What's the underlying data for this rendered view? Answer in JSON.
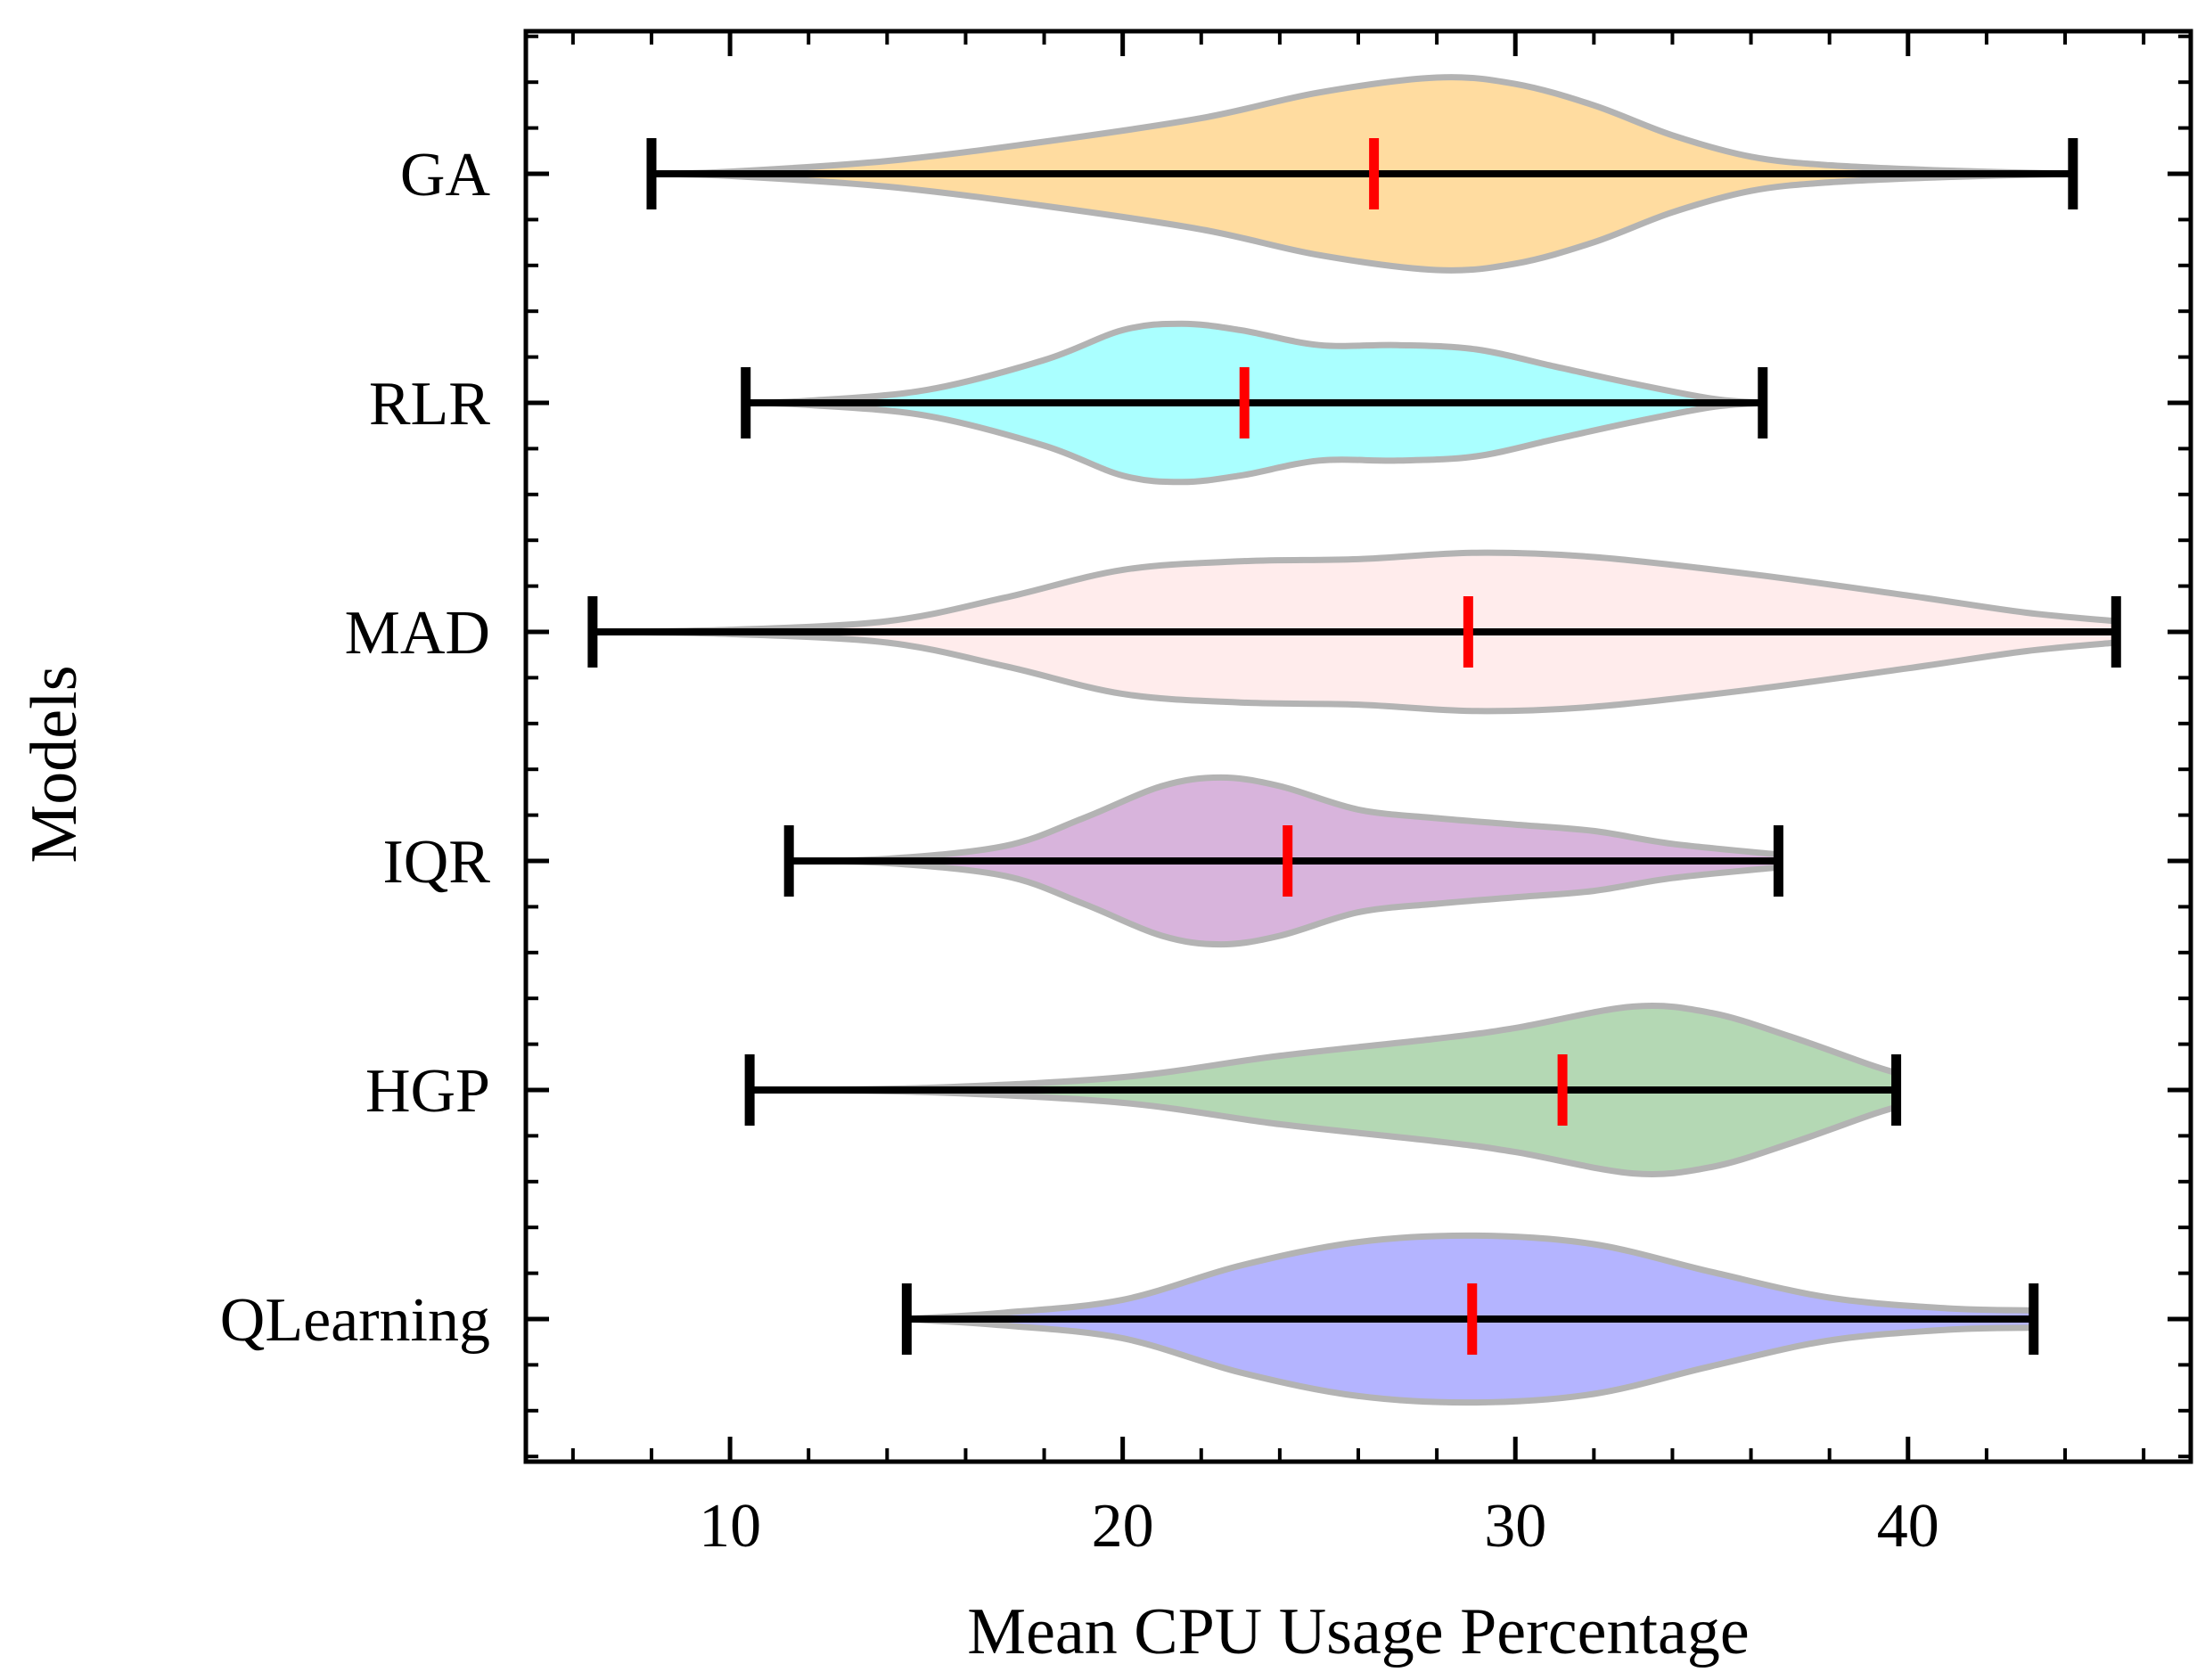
{
  "chart_data": {
    "type": "violin",
    "orientation": "horizontal",
    "xlabel": "Mean CPU Usage Percentage",
    "ylabel": "Models",
    "xlim": [
      4.8,
      47.2
    ],
    "xticks": [
      10,
      20,
      30,
      40
    ],
    "x_minor_step": 2,
    "grid": false,
    "colors": {
      "outline": "#b3b3b3",
      "whisker": "#000000",
      "median": "#ff0000"
    },
    "series": [
      {
        "name": "GA",
        "color": "#ffdca0",
        "min": 8.0,
        "max": 44.2,
        "median": 26.4,
        "profile": [
          [
            8.0,
            0.0
          ],
          [
            10,
            0.01
          ],
          [
            14,
            0.06
          ],
          [
            18,
            0.15
          ],
          [
            22,
            0.26
          ],
          [
            25,
            0.38
          ],
          [
            28,
            0.45
          ],
          [
            30,
            0.42
          ],
          [
            32,
            0.32
          ],
          [
            34,
            0.18
          ],
          [
            36,
            0.08
          ],
          [
            38,
            0.04
          ],
          [
            41,
            0.015
          ],
          [
            44.2,
            0.0
          ]
        ]
      },
      {
        "name": "RLR",
        "color": "#aaffff",
        "min": 10.4,
        "max": 36.3,
        "median": 23.1,
        "profile": [
          [
            10.4,
            0.0
          ],
          [
            12,
            0.01
          ],
          [
            15,
            0.06
          ],
          [
            18,
            0.2
          ],
          [
            20,
            0.34
          ],
          [
            21.5,
            0.37
          ],
          [
            23,
            0.34
          ],
          [
            25,
            0.27
          ],
          [
            27,
            0.27
          ],
          [
            29,
            0.25
          ],
          [
            31,
            0.17
          ],
          [
            33,
            0.09
          ],
          [
            35,
            0.02
          ],
          [
            36.3,
            0.0
          ]
        ]
      },
      {
        "name": "MAD",
        "color": "#ffecec",
        "min": 6.5,
        "max": 45.3,
        "median": 28.8,
        "profile": [
          [
            6.5,
            0.0
          ],
          [
            10,
            0.01
          ],
          [
            14,
            0.05
          ],
          [
            17,
            0.16
          ],
          [
            20,
            0.29
          ],
          [
            23,
            0.33
          ],
          [
            26,
            0.34
          ],
          [
            29,
            0.37
          ],
          [
            32,
            0.35
          ],
          [
            36,
            0.27
          ],
          [
            40,
            0.17
          ],
          [
            43,
            0.09
          ],
          [
            45.3,
            0.05
          ]
        ]
      },
      {
        "name": "IQR",
        "color": "#d8b4dc",
        "min": 11.5,
        "max": 36.7,
        "median": 24.2,
        "profile": [
          [
            11.5,
            0.0
          ],
          [
            14,
            0.01
          ],
          [
            17,
            0.07
          ],
          [
            19,
            0.2
          ],
          [
            21,
            0.35
          ],
          [
            22.5,
            0.39
          ],
          [
            24,
            0.35
          ],
          [
            26,
            0.24
          ],
          [
            28,
            0.2
          ],
          [
            30,
            0.17
          ],
          [
            32,
            0.14
          ],
          [
            34,
            0.08
          ],
          [
            36.7,
            0.03
          ]
        ]
      },
      {
        "name": "HGP",
        "color": "#b4d8b4",
        "min": 10.5,
        "max": 39.7,
        "median": 31.2,
        "profile": [
          [
            10.5,
            0.0
          ],
          [
            15,
            0.01
          ],
          [
            20,
            0.06
          ],
          [
            24,
            0.16
          ],
          [
            28,
            0.24
          ],
          [
            30,
            0.29
          ],
          [
            33,
            0.39
          ],
          [
            35,
            0.36
          ],
          [
            37,
            0.25
          ],
          [
            39,
            0.12
          ],
          [
            39.7,
            0.08
          ]
        ]
      },
      {
        "name": "QLearning",
        "color": "#b4b4ff",
        "min": 14.5,
        "max": 43.2,
        "median": 28.9,
        "profile": [
          [
            14.5,
            0.0
          ],
          [
            17,
            0.03
          ],
          [
            20,
            0.09
          ],
          [
            23,
            0.25
          ],
          [
            26,
            0.36
          ],
          [
            29,
            0.39
          ],
          [
            32,
            0.35
          ],
          [
            35,
            0.22
          ],
          [
            38,
            0.1
          ],
          [
            41,
            0.05
          ],
          [
            43.2,
            0.04
          ]
        ]
      }
    ]
  }
}
